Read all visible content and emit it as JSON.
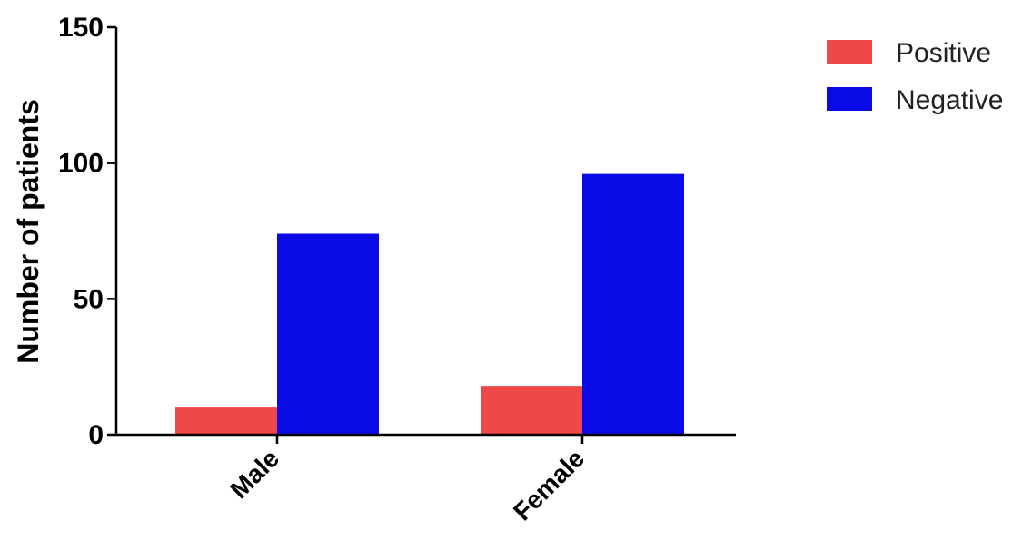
{
  "chart_data": {
    "type": "bar",
    "categories": [
      "Male",
      "Female"
    ],
    "series": [
      {
        "name": "Positive",
        "values": [
          10,
          18
        ],
        "color": "#f04848"
      },
      {
        "name": "Negative",
        "values": [
          74,
          96
        ],
        "color": "#0a0ae6"
      }
    ],
    "xlabel": "",
    "ylabel": "Number of patients",
    "ylim": [
      0,
      150
    ],
    "yticks": [
      0,
      50,
      100,
      150
    ],
    "grid": false,
    "legend_position": "top-right"
  }
}
